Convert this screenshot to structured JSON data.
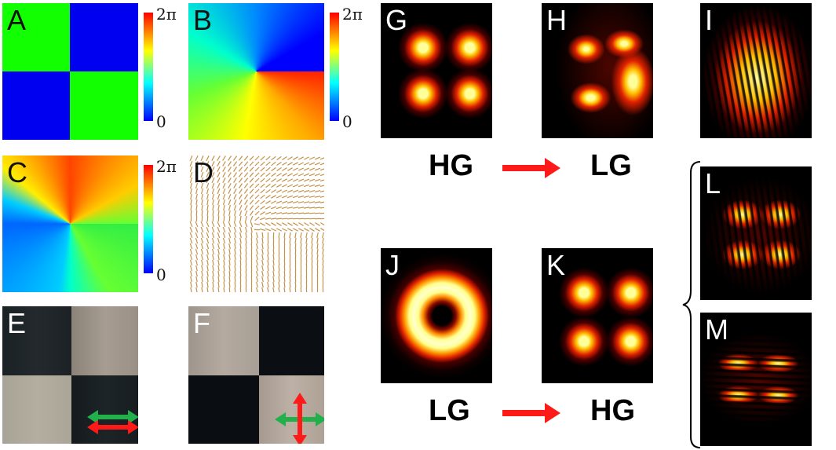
{
  "panels": {
    "a": "A",
    "b": "B",
    "c": "C",
    "d": "D",
    "e": "E",
    "f": "F",
    "g": "G",
    "h": "H",
    "i": "I",
    "j": "J",
    "k": "K",
    "l": "L",
    "m": "M"
  },
  "colorbar": {
    "max_label": "2π",
    "min_label": "0"
  },
  "modes": {
    "hg": "HG",
    "lg": "LG"
  },
  "colors": {
    "arrow_red": "#ff1a1a",
    "arrow_green": "#22b04a",
    "phase_green": "#00ff00",
    "phase_blue": "#0000ff"
  }
}
